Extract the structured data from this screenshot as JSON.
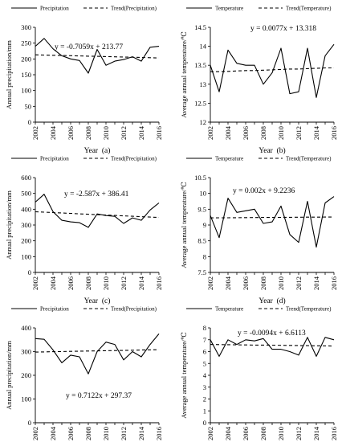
{
  "chart_data": [
    {
      "type": "line",
      "x": [
        2002,
        2003,
        2004,
        2005,
        2006,
        2007,
        2008,
        2009,
        2010,
        2011,
        2012,
        2013,
        2014,
        2015,
        2016
      ],
      "series": [
        {
          "name": "Precipitation",
          "values": [
            240,
            265,
            232,
            210,
            200,
            195,
            155,
            230,
            180,
            193,
            198,
            207,
            193,
            237,
            240
          ]
        },
        {
          "name": "Trend(Precipitation)",
          "values": [
            213.06,
            212.36,
            211.65,
            210.94,
            210.24,
            209.53,
            208.83,
            208.12,
            207.41,
            206.71,
            206.0,
            205.3,
            204.59,
            203.88,
            203.18
          ]
        }
      ],
      "equation": "y = -0.7059x + 213.77",
      "xlabel": "Year  (a)",
      "ylabel": "Annual precipitation/mm",
      "xticks": [
        "2002",
        "2004",
        "2006",
        "2008",
        "2010",
        "2012",
        "2014",
        "2016"
      ],
      "yticks": [
        "0",
        "50",
        "100",
        "150",
        "200",
        "250",
        "300"
      ],
      "ylim": [
        0,
        300
      ]
    },
    {
      "type": "line",
      "x": [
        2002,
        2003,
        2004,
        2005,
        2006,
        2007,
        2008,
        2009,
        2010,
        2011,
        2012,
        2013,
        2014,
        2015,
        2016
      ],
      "series": [
        {
          "name": "Temperature",
          "values": [
            13.5,
            12.8,
            13.9,
            13.55,
            13.5,
            13.5,
            13.0,
            13.3,
            13.95,
            12.75,
            12.8,
            13.95,
            12.65,
            13.75,
            14.05
          ]
        },
        {
          "name": "Trend(Temperature)",
          "values": [
            13.33,
            13.33,
            13.34,
            13.35,
            13.36,
            13.36,
            13.37,
            13.38,
            13.39,
            13.4,
            13.4,
            13.41,
            13.42,
            13.43,
            13.43
          ]
        }
      ],
      "equation": "y = 0.0077x + 13.318",
      "xlabel": "Year  (b)",
      "ylabel": "Average annual temperature/℃",
      "xticks": [
        "2002",
        "2004",
        "2006",
        "2008",
        "2010",
        "2012",
        "2014",
        "2016"
      ],
      "yticks": [
        "12",
        "12.5",
        "13",
        "13.5",
        "14",
        "14.5"
      ],
      "ylim": [
        12,
        14.5
      ]
    },
    {
      "type": "line",
      "x": [
        2002,
        2003,
        2004,
        2005,
        2006,
        2007,
        2008,
        2009,
        2010,
        2011,
        2012,
        2013,
        2014,
        2015,
        2016
      ],
      "series": [
        {
          "name": "Precipitation",
          "values": [
            445,
            495,
            385,
            330,
            320,
            315,
            285,
            370,
            360,
            355,
            310,
            345,
            330,
            395,
            440
          ]
        },
        {
          "name": "Trend(Precipitation)",
          "values": [
            383.82,
            381.24,
            378.65,
            376.06,
            373.48,
            370.89,
            368.3,
            365.71,
            363.13,
            360.54,
            357.96,
            355.37,
            352.78,
            350.19,
            347.61
          ]
        }
      ],
      "equation": "y = -2.587x + 386.41",
      "xlabel": "Year  (c)",
      "ylabel": "Annual precipitation/mm",
      "xticks": [
        "2002",
        "2004",
        "2006",
        "2008",
        "2010",
        "2012",
        "2014",
        "2016"
      ],
      "yticks": [
        "0",
        "100",
        "200",
        "300",
        "400",
        "500",
        "600"
      ],
      "ylim": [
        0,
        600
      ]
    },
    {
      "type": "line",
      "x": [
        2002,
        2003,
        2004,
        2005,
        2006,
        2007,
        2008,
        2009,
        2010,
        2011,
        2012,
        2013,
        2014,
        2015,
        2016
      ],
      "series": [
        {
          "name": "Temperature",
          "values": [
            9.3,
            8.6,
            9.85,
            9.4,
            9.45,
            9.5,
            9.05,
            9.1,
            9.6,
            8.7,
            8.45,
            9.75,
            8.3,
            9.7,
            9.9
          ]
        },
        {
          "name": "Trend(Temperature)",
          "values": [
            9.226,
            9.228,
            9.23,
            9.232,
            9.234,
            9.236,
            9.238,
            9.24,
            9.242,
            9.244,
            9.246,
            9.248,
            9.25,
            9.252,
            9.254
          ]
        }
      ],
      "equation": "y = 0.002x + 9.2236",
      "xlabel": "Year  (d)",
      "ylabel": "Average annual temperature/℃",
      "xticks": [
        "2002",
        "2004",
        "2006",
        "2008",
        "2010",
        "2012",
        "2014",
        "2016"
      ],
      "yticks": [
        "7.5",
        "8",
        "8.5",
        "9",
        "9.5",
        "10",
        "10.5"
      ],
      "ylim": [
        7.5,
        10.5
      ]
    },
    {
      "type": "line",
      "x": [
        2002,
        2003,
        2004,
        2005,
        2006,
        2007,
        2008,
        2009,
        2010,
        2011,
        2012,
        2013,
        2014,
        2015,
        2016
      ],
      "series": [
        {
          "name": "Precipitation",
          "values": [
            355,
            352,
            307,
            253,
            285,
            278,
            206,
            300,
            340,
            330,
            265,
            300,
            278,
            330,
            375
          ]
        },
        {
          "name": "Trend(Precipitation)",
          "values": [
            298.09,
            298.81,
            299.51,
            300.23,
            300.94,
            301.65,
            302.36,
            303.07,
            303.78,
            304.49,
            305.2,
            305.92,
            306.63,
            307.34,
            308.05
          ]
        }
      ],
      "equation": "y = 0.7122x + 297.37",
      "xlabel": "Year  (e)",
      "ylabel": "Annual precipitation/mm",
      "xticks": [
        "2002",
        "2004",
        "2006",
        "2008",
        "2010",
        "2012",
        "2014",
        "2016"
      ],
      "yticks": [
        "0",
        "100",
        "200",
        "300",
        "400"
      ],
      "ylim": [
        0,
        400
      ]
    },
    {
      "type": "line",
      "x": [
        2002,
        2003,
        2004,
        2005,
        2006,
        2007,
        2008,
        2009,
        2010,
        2011,
        2012,
        2013,
        2014,
        2015,
        2016
      ],
      "series": [
        {
          "name": "Temperature",
          "values": [
            7.0,
            5.6,
            7.0,
            6.6,
            7.0,
            6.9,
            7.1,
            6.2,
            6.2,
            6.0,
            5.7,
            7.2,
            5.6,
            7.2,
            7.0
          ]
        },
        {
          "name": "Trend(Temperature)",
          "values": [
            6.6,
            6.59,
            6.58,
            6.57,
            6.56,
            6.55,
            6.55,
            6.54,
            6.53,
            6.52,
            6.51,
            6.5,
            6.49,
            6.48,
            6.47
          ]
        }
      ],
      "equation": "y = -0.0094x + 6.6113",
      "xlabel": "Year  (f)",
      "ylabel": "Average annual temperature/℃",
      "xticks": [
        "2002",
        "2004",
        "2006",
        "2008",
        "2010",
        "2012",
        "2014",
        "2016"
      ],
      "yticks": [
        "0",
        "1",
        "2",
        "3",
        "4",
        "5",
        "6",
        "7",
        "8"
      ],
      "ylim": [
        0,
        8
      ]
    }
  ]
}
